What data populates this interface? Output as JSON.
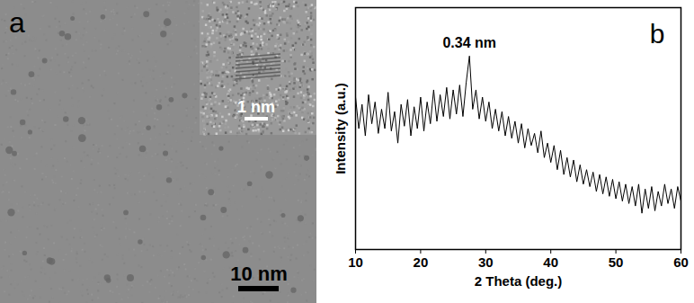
{
  "micrograph": {
    "label": "a",
    "scale_bar": "10 nm",
    "inset_scale_bar": "1 nm"
  },
  "chart_data": {
    "type": "line",
    "title": "b",
    "x_label": "2 Theta (deg.)",
    "y_label": "Intensity (a.u.)",
    "annotations": [
      {
        "text": "0.34 nm",
        "x": 27.5,
        "y": 80
      }
    ],
    "x": [
      10.0,
      10.5,
      11.0,
      11.5,
      12.0,
      12.5,
      13.0,
      13.5,
      14.0,
      14.5,
      15.0,
      15.5,
      16.0,
      16.5,
      17.0,
      17.5,
      18.0,
      18.5,
      19.0,
      19.5,
      20.0,
      20.5,
      21.0,
      21.5,
      22.0,
      22.5,
      23.0,
      23.5,
      24.0,
      24.5,
      25.0,
      25.5,
      26.0,
      26.5,
      27.0,
      27.5,
      28.0,
      28.5,
      29.0,
      29.5,
      30.0,
      30.5,
      31.0,
      31.5,
      32.0,
      32.5,
      33.0,
      33.5,
      34.0,
      34.5,
      35.0,
      35.5,
      36.0,
      36.5,
      37.0,
      37.5,
      38.0,
      38.5,
      39.0,
      39.5,
      40.0,
      40.5,
      41.0,
      41.5,
      42.0,
      42.5,
      43.0,
      43.5,
      44.0,
      44.5,
      45.0,
      45.5,
      46.0,
      46.5,
      47.0,
      47.5,
      48.0,
      48.5,
      49.0,
      49.5,
      50.0,
      50.5,
      51.0,
      51.5,
      52.0,
      52.5,
      53.0,
      53.5,
      54.0,
      54.5,
      55.0,
      55.5,
      56.0,
      56.5,
      57.0,
      57.5,
      58.0,
      58.5,
      59.0,
      59.5,
      60.0
    ],
    "values": [
      63,
      50,
      60,
      47,
      64,
      52,
      61,
      48,
      58,
      50,
      65,
      49,
      57,
      44,
      60,
      51,
      62,
      47,
      59,
      50,
      63,
      49,
      61,
      52,
      66,
      53,
      64,
      55,
      67,
      54,
      66,
      56,
      68,
      55,
      69,
      80,
      58,
      66,
      54,
      63,
      53,
      61,
      50,
      58,
      49,
      57,
      47,
      55,
      46,
      53,
      44,
      52,
      42,
      50,
      43,
      48,
      40,
      49,
      38,
      44,
      36,
      43,
      33,
      41,
      31,
      38,
      30,
      37,
      28,
      35,
      27,
      33,
      26,
      32,
      24,
      31,
      23,
      30,
      22,
      29,
      21,
      28,
      20,
      27,
      19,
      26,
      18,
      27,
      15,
      25,
      17,
      26,
      16,
      24,
      18,
      27,
      19,
      25,
      17,
      26,
      20
    ],
    "color": "#000000",
    "xlim": [
      10,
      60
    ],
    "xticks": [
      10,
      20,
      30,
      40,
      50,
      60
    ],
    "ylim": [
      0,
      100
    ],
    "tick_labels": "x",
    "grid": false
  }
}
